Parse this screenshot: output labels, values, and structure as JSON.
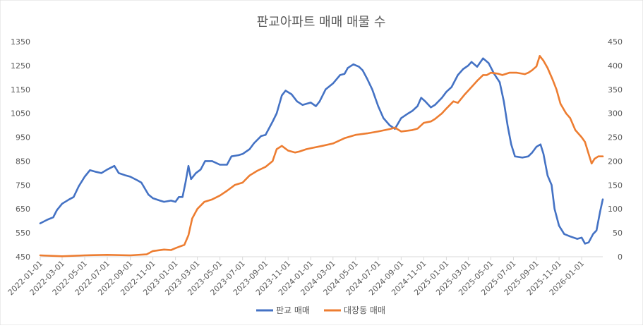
{
  "chart_data": {
    "type": "line",
    "title": "판교아파트 매매 매물 수",
    "x_start": "2022-01-01",
    "x_end": "2026-02-27",
    "x_tick_labels": [
      "2022-01-01",
      "2022-03-01",
      "2022-05-01",
      "2022-07-01",
      "2022-09-01",
      "2022-11-01",
      "2023-01-01",
      "2023-03-01",
      "2023-05-01",
      "2023-07-01",
      "2023-09-01",
      "2023-11-01",
      "2024-01-01",
      "2024-03-01",
      "2024-05-01",
      "2024-07-01",
      "2024-09-01",
      "2024-11-01",
      "2025-01-01",
      "2025-03-01",
      "2025-05-01",
      "2025-07-01",
      "2025-09-01",
      "2025-11-01",
      "2026-01-01"
    ],
    "y_left": {
      "ylim": [
        450,
        1350
      ],
      "ticks": [
        450,
        550,
        650,
        750,
        850,
        950,
        1050,
        1150,
        1250,
        1350
      ]
    },
    "y_right": {
      "ylim": [
        0,
        450
      ],
      "ticks": [
        0,
        50,
        100,
        150,
        200,
        250,
        300,
        350,
        400,
        450
      ]
    },
    "grid": false,
    "legend_position": "bottom",
    "series": [
      {
        "name": "판교 매매",
        "axis": "left",
        "color": "#4472c4",
        "points": [
          [
            "2022-01-01",
            590
          ],
          [
            "2022-01-20",
            605
          ],
          [
            "2022-02-05",
            615
          ],
          [
            "2022-02-15",
            645
          ],
          [
            "2022-03-01",
            672
          ],
          [
            "2022-03-20",
            690
          ],
          [
            "2022-04-01",
            700
          ],
          [
            "2022-04-15",
            745
          ],
          [
            "2022-05-01",
            785
          ],
          [
            "2022-05-15",
            812
          ],
          [
            "2022-06-01",
            805
          ],
          [
            "2022-06-15",
            800
          ],
          [
            "2022-07-01",
            815
          ],
          [
            "2022-07-20",
            830
          ],
          [
            "2022-08-01",
            800
          ],
          [
            "2022-08-20",
            790
          ],
          [
            "2022-09-01",
            785
          ],
          [
            "2022-09-20",
            770
          ],
          [
            "2022-10-01",
            760
          ],
          [
            "2022-10-20",
            710
          ],
          [
            "2022-11-01",
            695
          ],
          [
            "2022-11-20",
            685
          ],
          [
            "2022-12-01",
            680
          ],
          [
            "2022-12-20",
            685
          ],
          [
            "2023-01-01",
            680
          ],
          [
            "2023-01-10",
            700
          ],
          [
            "2023-01-20",
            700
          ],
          [
            "2023-01-28",
            760
          ],
          [
            "2023-02-05",
            830
          ],
          [
            "2023-02-12",
            775
          ],
          [
            "2023-02-25",
            800
          ],
          [
            "2023-03-10",
            815
          ],
          [
            "2023-03-22",
            850
          ],
          [
            "2023-04-10",
            850
          ],
          [
            "2023-05-01",
            835
          ],
          [
            "2023-05-20",
            835
          ],
          [
            "2023-06-01",
            870
          ],
          [
            "2023-06-20",
            875
          ],
          [
            "2023-07-01",
            880
          ],
          [
            "2023-07-20",
            900
          ],
          [
            "2023-08-01",
            925
          ],
          [
            "2023-08-20",
            955
          ],
          [
            "2023-09-01",
            960
          ],
          [
            "2023-09-20",
            1015
          ],
          [
            "2023-10-01",
            1050
          ],
          [
            "2023-10-15",
            1125
          ],
          [
            "2023-10-25",
            1145
          ],
          [
            "2023-11-10",
            1130
          ],
          [
            "2023-11-25",
            1100
          ],
          [
            "2023-12-10",
            1085
          ],
          [
            "2024-01-01",
            1095
          ],
          [
            "2024-01-15",
            1080
          ],
          [
            "2024-01-25",
            1100
          ],
          [
            "2024-02-10",
            1150
          ],
          [
            "2024-03-01",
            1175
          ],
          [
            "2024-03-20",
            1210
          ],
          [
            "2024-04-01",
            1215
          ],
          [
            "2024-04-10",
            1240
          ],
          [
            "2024-04-25",
            1255
          ],
          [
            "2024-05-10",
            1245
          ],
          [
            "2024-05-20",
            1230
          ],
          [
            "2024-06-01",
            1195
          ],
          [
            "2024-06-15",
            1150
          ],
          [
            "2024-07-01",
            1080
          ],
          [
            "2024-07-15",
            1030
          ],
          [
            "2024-08-01",
            1000
          ],
          [
            "2024-08-15",
            985
          ],
          [
            "2024-09-01",
            1030
          ],
          [
            "2024-09-20",
            1050
          ],
          [
            "2024-10-01",
            1060
          ],
          [
            "2024-10-15",
            1080
          ],
          [
            "2024-10-25",
            1115
          ],
          [
            "2024-11-05",
            1100
          ],
          [
            "2024-11-20",
            1075
          ],
          [
            "2024-12-01",
            1085
          ],
          [
            "2024-12-20",
            1115
          ],
          [
            "2025-01-01",
            1140
          ],
          [
            "2025-01-15",
            1160
          ],
          [
            "2025-02-01",
            1210
          ],
          [
            "2025-02-15",
            1235
          ],
          [
            "2025-03-01",
            1250
          ],
          [
            "2025-03-10",
            1265
          ],
          [
            "2025-03-25",
            1245
          ],
          [
            "2025-04-10",
            1280
          ],
          [
            "2025-04-25",
            1260
          ],
          [
            "2025-05-10",
            1215
          ],
          [
            "2025-05-25",
            1180
          ],
          [
            "2025-06-05",
            1100
          ],
          [
            "2025-06-15",
            1000
          ],
          [
            "2025-06-25",
            920
          ],
          [
            "2025-07-05",
            870
          ],
          [
            "2025-07-25",
            865
          ],
          [
            "2025-08-10",
            870
          ],
          [
            "2025-08-20",
            885
          ],
          [
            "2025-09-01",
            910
          ],
          [
            "2025-09-12",
            920
          ],
          [
            "2025-09-20",
            880
          ],
          [
            "2025-10-01",
            790
          ],
          [
            "2025-10-12",
            750
          ],
          [
            "2025-10-20",
            650
          ],
          [
            "2025-11-01",
            580
          ],
          [
            "2025-11-15",
            545
          ],
          [
            "2025-12-01",
            535
          ],
          [
            "2025-12-20",
            525
          ],
          [
            "2026-01-01",
            530
          ],
          [
            "2026-01-10",
            505
          ],
          [
            "2026-01-20",
            510
          ],
          [
            "2026-02-01",
            545
          ],
          [
            "2026-02-10",
            560
          ],
          [
            "2026-02-20",
            640
          ],
          [
            "2026-02-27",
            690
          ]
        ]
      },
      {
        "name": "대장동 매매",
        "axis": "right",
        "color": "#ed7d31",
        "points": [
          [
            "2022-01-01",
            3
          ],
          [
            "2022-03-01",
            1
          ],
          [
            "2022-05-01",
            3
          ],
          [
            "2022-07-01",
            4
          ],
          [
            "2022-09-01",
            3
          ],
          [
            "2022-10-15",
            5
          ],
          [
            "2022-11-01",
            12
          ],
          [
            "2022-12-01",
            15
          ],
          [
            "2022-12-20",
            14
          ],
          [
            "2023-01-01",
            18
          ],
          [
            "2023-01-25",
            25
          ],
          [
            "2023-02-05",
            45
          ],
          [
            "2023-02-15",
            80
          ],
          [
            "2023-03-01",
            100
          ],
          [
            "2023-03-20",
            115
          ],
          [
            "2023-04-10",
            120
          ],
          [
            "2023-05-01",
            128
          ],
          [
            "2023-05-20",
            138
          ],
          [
            "2023-06-10",
            150
          ],
          [
            "2023-07-01",
            155
          ],
          [
            "2023-07-20",
            170
          ],
          [
            "2023-08-10",
            180
          ],
          [
            "2023-09-01",
            188
          ],
          [
            "2023-09-20",
            200
          ],
          [
            "2023-10-01",
            225
          ],
          [
            "2023-10-15",
            232
          ],
          [
            "2023-11-01",
            222
          ],
          [
            "2023-11-20",
            218
          ],
          [
            "2023-12-01",
            220
          ],
          [
            "2023-12-20",
            225
          ],
          [
            "2024-01-01",
            227
          ],
          [
            "2024-02-01",
            232
          ],
          [
            "2024-03-01",
            237
          ],
          [
            "2024-04-01",
            248
          ],
          [
            "2024-05-01",
            255
          ],
          [
            "2024-06-01",
            258
          ],
          [
            "2024-07-01",
            262
          ],
          [
            "2024-08-01",
            267
          ],
          [
            "2024-08-15",
            270
          ],
          [
            "2024-09-01",
            262
          ],
          [
            "2024-10-01",
            265
          ],
          [
            "2024-10-15",
            268
          ],
          [
            "2024-11-01",
            280
          ],
          [
            "2024-11-20",
            283
          ],
          [
            "2024-12-01",
            288
          ],
          [
            "2024-12-20",
            300
          ],
          [
            "2025-01-01",
            310
          ],
          [
            "2025-01-20",
            325
          ],
          [
            "2025-02-01",
            322
          ],
          [
            "2025-02-20",
            340
          ],
          [
            "2025-03-10",
            355
          ],
          [
            "2025-03-25",
            368
          ],
          [
            "2025-04-10",
            380
          ],
          [
            "2025-04-20",
            380
          ],
          [
            "2025-05-01",
            385
          ],
          [
            "2025-05-20",
            383
          ],
          [
            "2025-06-01",
            380
          ],
          [
            "2025-06-20",
            385
          ],
          [
            "2025-07-10",
            385
          ],
          [
            "2025-08-01",
            382
          ],
          [
            "2025-08-10",
            385
          ],
          [
            "2025-08-20",
            390
          ],
          [
            "2025-09-01",
            398
          ],
          [
            "2025-09-10",
            420
          ],
          [
            "2025-09-20",
            410
          ],
          [
            "2025-10-01",
            395
          ],
          [
            "2025-10-15",
            370
          ],
          [
            "2025-10-25",
            350
          ],
          [
            "2025-11-05",
            320
          ],
          [
            "2025-11-20",
            300
          ],
          [
            "2025-12-01",
            290
          ],
          [
            "2025-12-15",
            265
          ],
          [
            "2026-01-01",
            250
          ],
          [
            "2026-01-10",
            240
          ],
          [
            "2026-01-20",
            215
          ],
          [
            "2026-01-28",
            195
          ],
          [
            "2026-02-05",
            205
          ],
          [
            "2026-02-15",
            210
          ],
          [
            "2026-02-27",
            210
          ]
        ]
      }
    ]
  }
}
